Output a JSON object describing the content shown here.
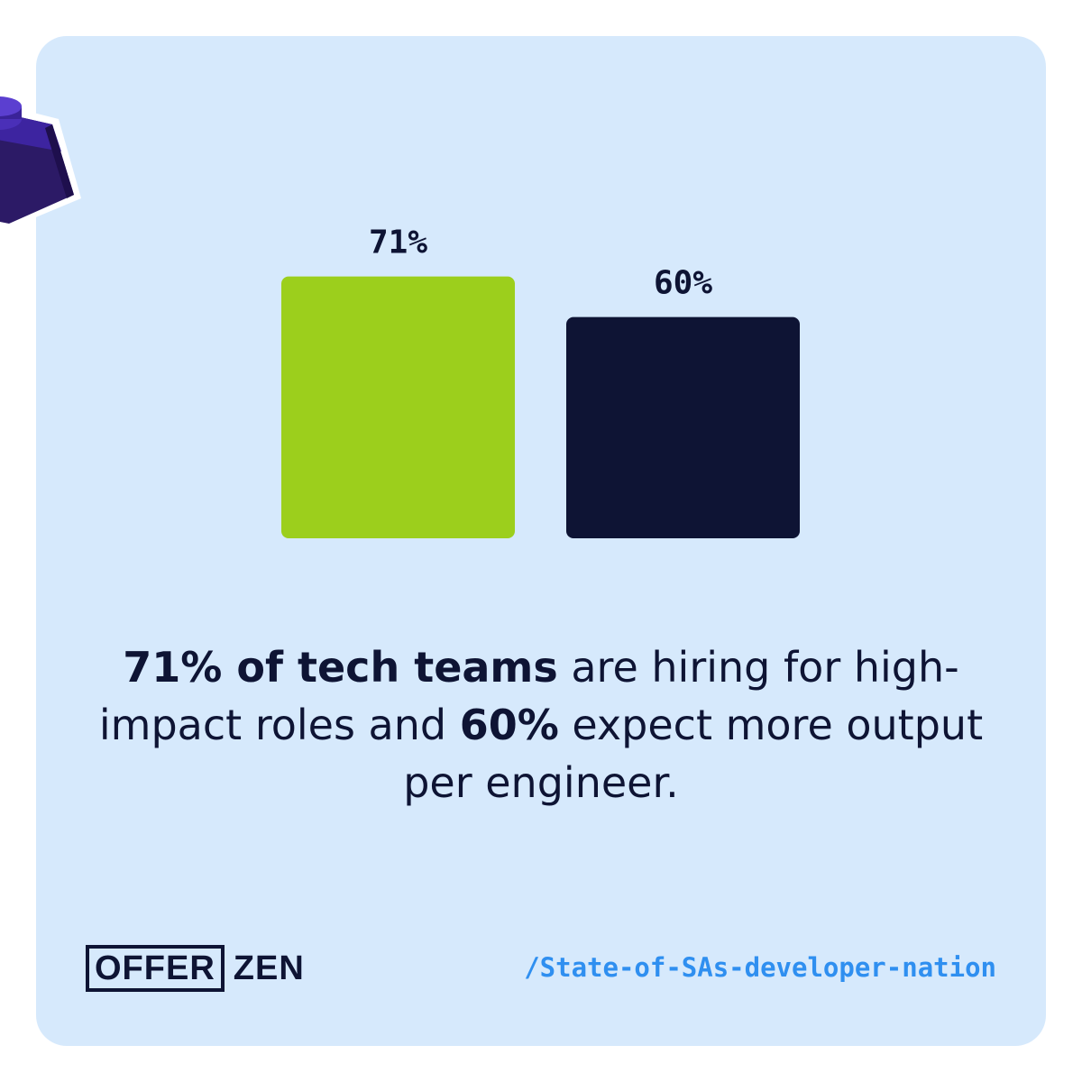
{
  "chart_data": {
    "type": "bar",
    "categories": [
      "",
      ""
    ],
    "values": [
      71,
      60
    ],
    "value_labels": [
      "71%",
      "60%"
    ],
    "colors": [
      "#9ccf1c",
      "#0e1434"
    ],
    "title": "",
    "xlabel": "",
    "ylabel": "",
    "ylim": [
      0,
      100
    ],
    "grid": false
  },
  "headline": {
    "part1_bold": "71% of tech teams",
    "part2": " are hiring for high-impact roles and ",
    "part3_bold": "60%",
    "part4": " expect more output per engineer."
  },
  "footer": {
    "logo_left": "OFFER",
    "logo_right": "ZEN",
    "source": "/State-of-SAs-developer-nation"
  },
  "colors": {
    "background": "#d6e9fc",
    "navy": "#0e1434",
    "green": "#9ccf1c",
    "link_blue": "#2f8ff0",
    "brick_purple": "#3a1f86"
  }
}
